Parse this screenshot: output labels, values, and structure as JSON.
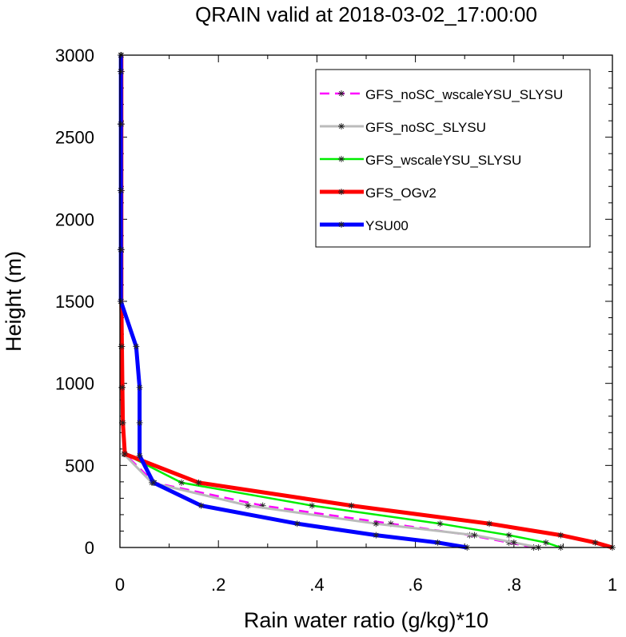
{
  "chart_data": {
    "type": "line",
    "title": "QRAIN valid at 2018-03-02_17:00:00",
    "xlabel": "Rain water ratio (g/kg)*10",
    "ylabel": "Height (m)",
    "xlim": [
      0,
      1
    ],
    "ylim": [
      0,
      3000
    ],
    "x_ticks": [
      "0",
      ".2",
      ".4",
      ".6",
      ".8",
      "1"
    ],
    "y_ticks": [
      "0",
      "500",
      "1000",
      "1500",
      "2000",
      "2500",
      "3000"
    ],
    "legend_position": "top-right",
    "series": [
      {
        "name": "GFS_noSC_wscaleYSU_SLYSU",
        "color": "#ff00ff",
        "style": "dashed",
        "x": [
          0.84,
          0.79,
          0.71,
          0.55,
          0.29,
          0.07,
          0.01,
          0.005,
          0.004,
          0.003,
          0.002,
          0.002,
          0.002,
          0.002,
          0.002,
          0.002
        ],
        "y": [
          0,
          30,
          75,
          145,
          255,
          395,
          570,
          760,
          975,
          1225,
          1500,
          1815,
          2175,
          2580,
          2900,
          3000
        ]
      },
      {
        "name": "GFS_noSC_SLYSU",
        "color": "#bbbbbb",
        "style": "solid",
        "x": [
          0.85,
          0.8,
          0.72,
          0.52,
          0.26,
          0.065,
          0.008,
          0.005,
          0.004,
          0.003,
          0.002,
          0.002,
          0.002,
          0.002,
          0.002,
          0.002
        ],
        "y": [
          0,
          30,
          75,
          145,
          255,
          395,
          570,
          760,
          975,
          1225,
          1500,
          1815,
          2175,
          2580,
          2900,
          3000
        ]
      },
      {
        "name": "GFS_wscaleYSU_SLYSU",
        "color": "#00ee00",
        "style": "solid",
        "x": [
          0.895,
          0.865,
          0.79,
          0.65,
          0.39,
          0.125,
          0.01,
          0.005,
          0.004,
          0.003,
          0.002,
          0.002,
          0.002,
          0.002,
          0.002,
          0.002
        ],
        "y": [
          0,
          30,
          75,
          145,
          255,
          395,
          570,
          760,
          975,
          1225,
          1500,
          1815,
          2175,
          2580,
          2900,
          3000
        ]
      },
      {
        "name": "GFS_OGv2",
        "color": "#ff0000",
        "style": "solid",
        "x": [
          1.0,
          0.965,
          0.895,
          0.75,
          0.47,
          0.16,
          0.01,
          0.006,
          0.005,
          0.004,
          0.003,
          0.003,
          0.003,
          0.003,
          0.003,
          0.003
        ],
        "y": [
          0,
          30,
          75,
          145,
          255,
          395,
          570,
          760,
          975,
          1225,
          1500,
          1815,
          2175,
          2580,
          2900,
          3000
        ]
      },
      {
        "name": "YSU00",
        "color": "#0000ff",
        "style": "solid",
        "x": [
          0.705,
          0.645,
          0.52,
          0.36,
          0.165,
          0.068,
          0.04,
          0.04,
          0.04,
          0.033,
          0.002,
          0.002,
          0.002,
          0.002,
          0.002,
          0.002
        ],
        "y": [
          0,
          30,
          75,
          145,
          255,
          395,
          560,
          760,
          975,
          1225,
          1500,
          1815,
          2175,
          2580,
          2900,
          3000
        ]
      }
    ]
  }
}
